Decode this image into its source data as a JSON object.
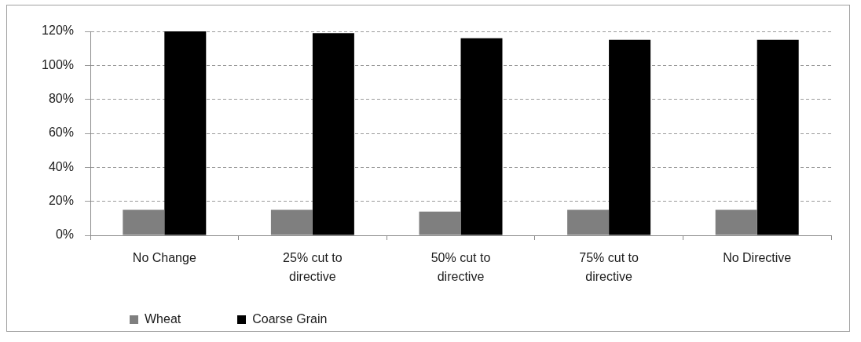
{
  "chart_data": {
    "type": "bar",
    "categories": [
      "No Change",
      "25% cut to directive",
      "50% cut to directive",
      "75% cut to directive",
      "No Directive"
    ],
    "series": [
      {
        "name": "Wheat",
        "color": "#7f7f7f",
        "values": [
          15,
          15,
          14,
          15,
          15
        ]
      },
      {
        "name": "Coarse Grain",
        "color": "#000000",
        "values": [
          120,
          119,
          116,
          115,
          115
        ]
      }
    ],
    "ylim": [
      0,
      120
    ],
    "yticks": [
      {
        "value": 0,
        "label": "0%"
      },
      {
        "value": 20,
        "label": "20%"
      },
      {
        "value": 40,
        "label": "40%"
      },
      {
        "value": 60,
        "label": "60%"
      },
      {
        "value": 80,
        "label": "80%"
      },
      {
        "value": 100,
        "label": "100%"
      },
      {
        "value": 120,
        "label": "120%"
      }
    ],
    "grid": "y",
    "legend": "bottom"
  }
}
